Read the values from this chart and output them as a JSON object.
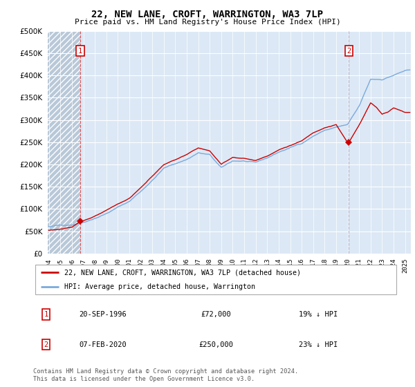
{
  "title": "22, NEW LANE, CROFT, WARRINGTON, WA3 7LP",
  "subtitle": "Price paid vs. HM Land Registry's House Price Index (HPI)",
  "legend_line1": "22, NEW LANE, CROFT, WARRINGTON, WA3 7LP (detached house)",
  "legend_line2": "HPI: Average price, detached house, Warrington",
  "annotation1_date": "20-SEP-1996",
  "annotation1_price": 72000,
  "annotation1_hpi": "19% ↓ HPI",
  "annotation2_date": "07-FEB-2020",
  "annotation2_price": 250000,
  "annotation2_hpi": "23% ↓ HPI",
  "footer": "Contains HM Land Registry data © Crown copyright and database right 2024.\nThis data is licensed under the Open Government Licence v3.0.",
  "hpi_color": "#7aaadd",
  "price_color": "#cc0000",
  "vline1_color": "#dd4444",
  "vline2_color": "#aaaacc",
  "bg_color": "#dce8f5",
  "hatch_color": "#b8c8d8",
  "grid_color": "#ffffff",
  "ylim": [
    0,
    500000
  ],
  "yticks": [
    0,
    50000,
    100000,
    150000,
    200000,
    250000,
    300000,
    350000,
    400000,
    450000,
    500000
  ],
  "xmin": 1993.9,
  "xmax": 2025.5,
  "sale1_x": 1996.72,
  "sale1_y": 72000,
  "sale2_x": 2020.1,
  "sale2_y": 250000
}
